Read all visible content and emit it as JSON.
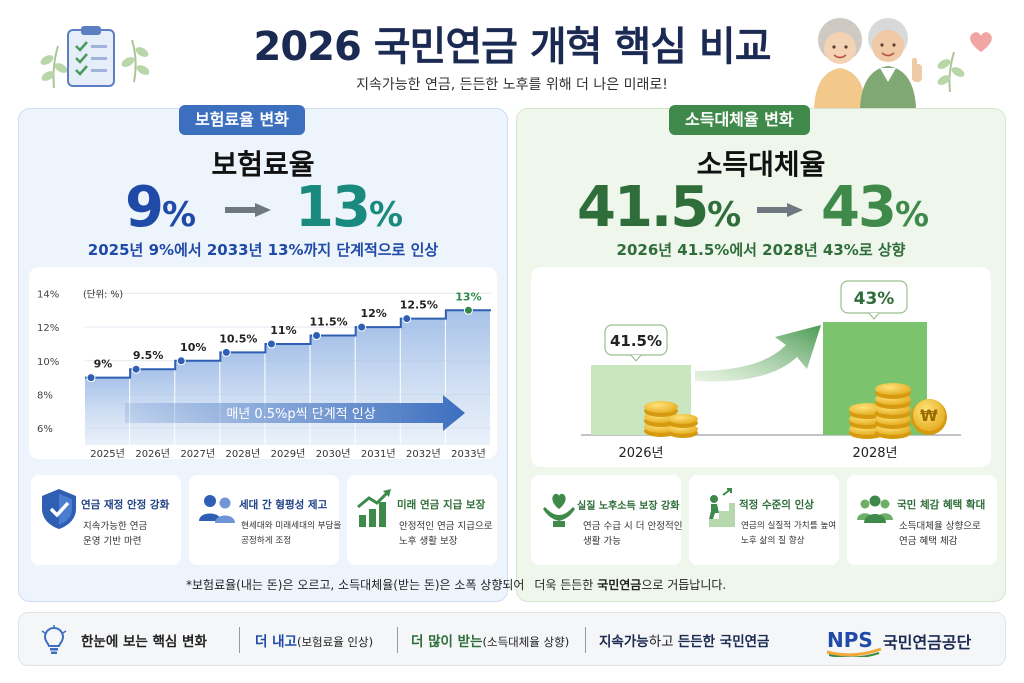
{
  "header": {
    "title": "2026 국민연금 개혁 핵심 비교",
    "subtitle": "지속가능한 연금, 든든한 노후를 위해 더 나은 미래로!"
  },
  "left": {
    "pill": "보험료율 변화",
    "headline": "보험료율",
    "from_value": "9",
    "to_value": "13",
    "pct_sign": "%",
    "description": "2025년 9%에서 2033년 13%까지 단계적으로 인상",
    "colors": {
      "primary": "#1f4aa8",
      "accent": "#1a8a7f"
    }
  },
  "chart_data": {
    "type": "area",
    "unit_label": "(단위: %)",
    "categories": [
      "2025년",
      "2026년",
      "2027년",
      "2028년",
      "2029년",
      "2030년",
      "2031년",
      "2032년",
      "2033년"
    ],
    "values": [
      9,
      9.5,
      10,
      10.5,
      11,
      11.5,
      12,
      12.5,
      13
    ],
    "value_labels": [
      "9%",
      "9.5%",
      "10%",
      "10.5%",
      "11%",
      "11.5%",
      "12%",
      "12.5%",
      "13%"
    ],
    "y_ticks": [
      "6%",
      "8%",
      "10%",
      "12%",
      "14%"
    ],
    "y_tick_values": [
      6,
      8,
      10,
      12,
      14
    ],
    "ylim": [
      5,
      14.5
    ],
    "annotation": "매년 0.5%p씩 단계적 인상",
    "grid": true
  },
  "left_features": [
    {
      "icon": "shield-check-icon",
      "title": "연금 재정 안정 강화",
      "lines": [
        "지속가능한 연금",
        "운영 기반 마련"
      ]
    },
    {
      "icon": "people-icon",
      "title": "세대 간 형평성 제고",
      "lines": [
        "현세대와 미래세대의 부담을",
        "공정하게 조정"
      ]
    },
    {
      "icon": "growth-chart-icon",
      "title": "미래 연금 지급 보장",
      "lines": [
        "안정적인 연금 지급으로",
        "노후 생활 보장"
      ]
    }
  ],
  "right": {
    "pill": "소득대체율 변화",
    "headline": "소득대체율",
    "from_value": "41.5",
    "to_value": "43",
    "pct_sign": "%",
    "description": "2026년 41.5%에서 2028년 43%로 상향",
    "colors": {
      "primary": "#2f6e3a",
      "accent": "#3f8a4a"
    },
    "bars": [
      {
        "year": "2026년",
        "label": "41.5%",
        "value": 41.5
      },
      {
        "year": "2028년",
        "label": "43%",
        "value": 43
      }
    ],
    "coin_symbol": "₩"
  },
  "right_features": [
    {
      "icon": "heart-hands-icon",
      "title": "실질 노후소득 보장 강화",
      "lines": [
        "연금 수급 시 더 안정적인",
        "생활 가능"
      ]
    },
    {
      "icon": "climbing-person-icon",
      "title": "적정 수준의 인상",
      "lines": [
        "연금의 실질적 가치를 높여",
        "노후 삶의 질 향상"
      ]
    },
    {
      "icon": "group-icon",
      "title": "국민 체감 혜택 확대",
      "lines": [
        "소득대체율 상향으로",
        "연금 혜택 체감"
      ]
    }
  ],
  "footnote": {
    "lead": "*보험료율(내는 돈)은 오르고, 소득대체율(받는 돈)은 소폭 상향되어",
    "tail_normal": "더욱 든든한",
    "tail_bold": "국민연금",
    "tail_end": "으로 거듭납니다."
  },
  "bottom": {
    "summary_title": "한눈에 보는 핵심 변화",
    "item1_bold": "더 내고",
    "item1_note": "(보험료율 인상)",
    "item2_bold": "더 많이 받는",
    "item2_note": "(소득대체율 상향)",
    "item3_a": "지속가능",
    "item3_b": "하고 ",
    "item3_c": "든든한 국민연금",
    "logo_text": "NPS",
    "org_name": "국민연금공단"
  }
}
